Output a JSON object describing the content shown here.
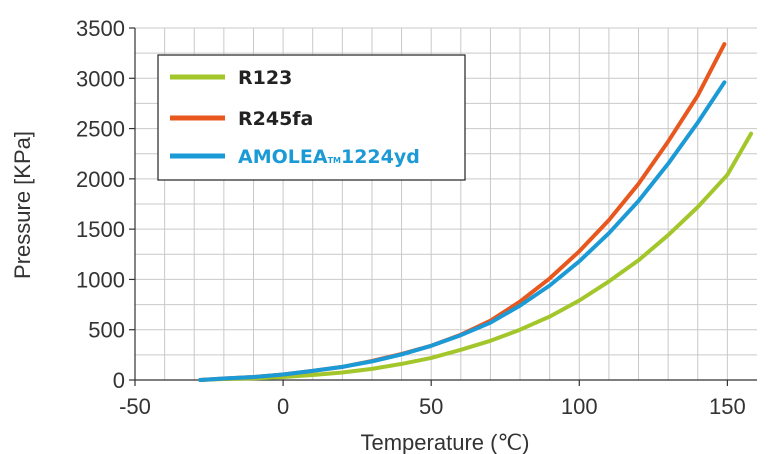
{
  "chart_data": {
    "type": "line",
    "xlabel": "Temperature (℃)",
    "ylabel": "Pressure [KPa]",
    "xlim": [
      -50,
      160
    ],
    "ylim": [
      0,
      3500
    ],
    "grid": true,
    "legend_position": "top-left",
    "x_tick_values": [
      -50,
      0,
      50,
      100,
      150
    ],
    "x_tick_labels": [
      "-50",
      "0",
      "50",
      "100",
      "150"
    ],
    "y_tick_values": [
      0,
      500,
      1000,
      1500,
      2000,
      2500,
      3000,
      3500
    ],
    "y_tick_labels": [
      "0",
      "500",
      "1000",
      "1500",
      "2000",
      "2500",
      "3000",
      "3500"
    ],
    "series": [
      {
        "name": "R123",
        "color": "#a3c62b",
        "x": [
          -28,
          -20,
          -10,
          0,
          10,
          20,
          30,
          40,
          50,
          60,
          70,
          80,
          90,
          100,
          110,
          120,
          130,
          140,
          150,
          158
        ],
        "y": [
          0,
          10,
          16,
          30,
          50,
          75,
          110,
          160,
          220,
          300,
          390,
          500,
          630,
          790,
          980,
          1190,
          1440,
          1720,
          2040,
          2450
        ]
      },
      {
        "name": "R245fa",
        "color": "#e8571e",
        "x": [
          -28,
          -20,
          -10,
          0,
          10,
          20,
          30,
          40,
          50,
          60,
          70,
          80,
          90,
          100,
          110,
          120,
          130,
          140,
          149
        ],
        "y": [
          0,
          15,
          30,
          55,
          90,
          130,
          190,
          260,
          340,
          450,
          590,
          780,
          1010,
          1280,
          1590,
          1950,
          2370,
          2830,
          3340
        ]
      },
      {
        "name": "AMOLEA™1224yd",
        "legend_main": "AMOLEA",
        "legend_tm": "TM",
        "legend_suffix": "1224yd",
        "color": "#1b9ad6",
        "x": [
          -28,
          -20,
          -10,
          0,
          10,
          20,
          30,
          40,
          50,
          60,
          70,
          80,
          90,
          100,
          110,
          120,
          130,
          140,
          149
        ],
        "y": [
          0,
          15,
          30,
          55,
          90,
          130,
          185,
          255,
          340,
          445,
          570,
          740,
          940,
          1180,
          1460,
          1780,
          2150,
          2560,
          2960
        ]
      }
    ]
  }
}
